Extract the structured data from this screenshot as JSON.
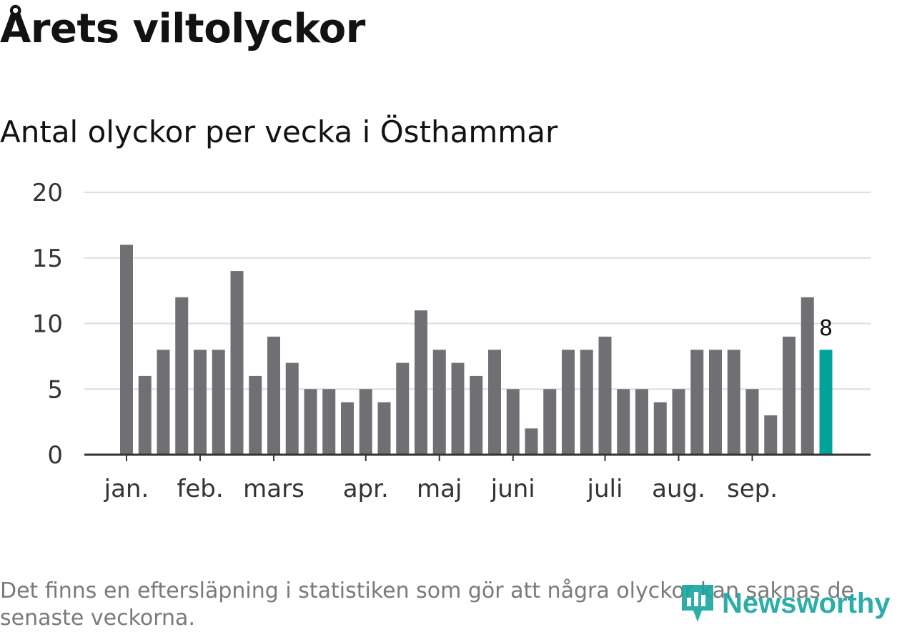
{
  "header": {
    "title": "Årets viltolyckor",
    "subtitle": "Antal olyckor per vecka i Östhammar"
  },
  "chart_data": {
    "type": "bar",
    "title": "Årets viltolyckor",
    "subtitle": "Antal olyckor per vecka i Östhammar",
    "xlabel": "",
    "ylabel": "",
    "ylim": [
      0,
      20
    ],
    "yticks": [
      0,
      5,
      10,
      15,
      20
    ],
    "grid": true,
    "values": [
      16,
      6,
      8,
      12,
      8,
      8,
      14,
      6,
      9,
      7,
      5,
      5,
      4,
      5,
      4,
      7,
      11,
      8,
      7,
      6,
      8,
      5,
      2,
      5,
      8,
      8,
      9,
      5,
      5,
      4,
      5,
      8,
      8,
      8,
      5,
      3,
      9,
      12,
      8
    ],
    "month_labels": [
      {
        "label": "jan.",
        "week_index": 0
      },
      {
        "label": "feb.",
        "week_index": 4
      },
      {
        "label": "mars",
        "week_index": 8
      },
      {
        "label": "apr.",
        "week_index": 13
      },
      {
        "label": "maj",
        "week_index": 17
      },
      {
        "label": "juni",
        "week_index": 21
      },
      {
        "label": "juli",
        "week_index": 26
      },
      {
        "label": "aug.",
        "week_index": 30
      },
      {
        "label": "sep.",
        "week_index": 34
      }
    ],
    "highlight_label": "8",
    "bar_color": "#706f74",
    "highlight_color": "#00a39a"
  },
  "footer": {
    "note": "Det finns en eftersläpning i statistiken som gör att några olyckor kan saknas de senaste veckorna.",
    "brand": "Newsworthy",
    "brand_icon": "bar-chart-pin-icon",
    "brand_color": "#17a5a0"
  }
}
